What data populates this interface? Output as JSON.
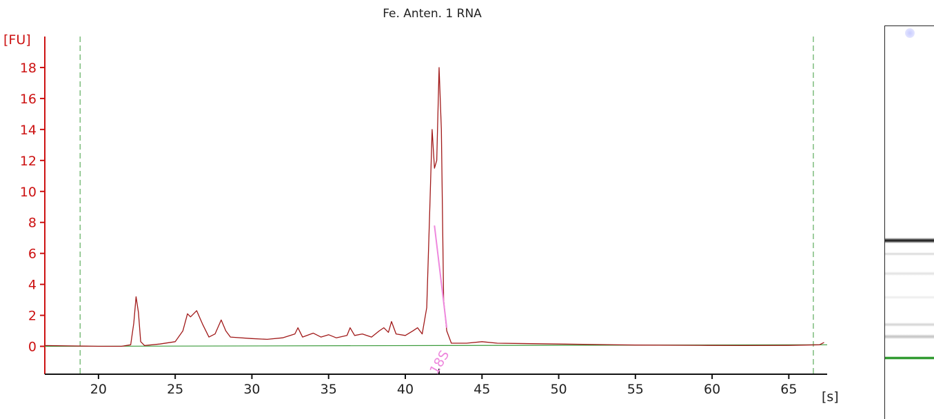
{
  "chart_data": {
    "type": "line",
    "title": "Fe. Anten. 1 RNA",
    "xlabel": "[s]",
    "ylabel": "[FU]",
    "xlim": [
      16.5,
      67.5
    ],
    "ylim": [
      -1.8,
      20
    ],
    "x_ticks": [
      20,
      25,
      30,
      35,
      40,
      45,
      50,
      55,
      60,
      65
    ],
    "y_ticks": [
      0,
      2,
      4,
      6,
      8,
      10,
      12,
      14,
      16,
      18
    ],
    "grid": false,
    "legend": "none",
    "series": [
      {
        "color": "#a01818",
        "points": [
          [
            16.5,
            0.05
          ],
          [
            18.0,
            0.03
          ],
          [
            20.0,
            0.0
          ],
          [
            21.5,
            0.0
          ],
          [
            22.1,
            0.1
          ],
          [
            22.3,
            1.5
          ],
          [
            22.45,
            3.2
          ],
          [
            22.6,
            2.2
          ],
          [
            22.75,
            0.3
          ],
          [
            23.0,
            0.05
          ],
          [
            24.0,
            0.15
          ],
          [
            25.0,
            0.3
          ],
          [
            25.5,
            1.0
          ],
          [
            25.8,
            2.1
          ],
          [
            26.0,
            1.9
          ],
          [
            26.4,
            2.3
          ],
          [
            26.8,
            1.4
          ],
          [
            27.2,
            0.6
          ],
          [
            27.6,
            0.8
          ],
          [
            28.0,
            1.7
          ],
          [
            28.3,
            1.0
          ],
          [
            28.6,
            0.6
          ],
          [
            30.0,
            0.5
          ],
          [
            31.0,
            0.45
          ],
          [
            32.0,
            0.55
          ],
          [
            32.8,
            0.8
          ],
          [
            33.0,
            1.2
          ],
          [
            33.3,
            0.6
          ],
          [
            34.0,
            0.85
          ],
          [
            34.5,
            0.6
          ],
          [
            35.0,
            0.75
          ],
          [
            35.5,
            0.55
          ],
          [
            36.2,
            0.7
          ],
          [
            36.4,
            1.2
          ],
          [
            36.7,
            0.7
          ],
          [
            37.2,
            0.8
          ],
          [
            37.8,
            0.6
          ],
          [
            38.3,
            1.0
          ],
          [
            38.6,
            1.2
          ],
          [
            38.9,
            0.9
          ],
          [
            39.1,
            1.6
          ],
          [
            39.4,
            0.8
          ],
          [
            40.0,
            0.7
          ],
          [
            40.5,
            1.0
          ],
          [
            40.8,
            1.2
          ],
          [
            41.1,
            0.8
          ],
          [
            41.4,
            2.5
          ],
          [
            41.6,
            9.0
          ],
          [
            41.75,
            14.0
          ],
          [
            41.9,
            11.5
          ],
          [
            42.05,
            12.0
          ],
          [
            42.2,
            18.0
          ],
          [
            42.35,
            14.0
          ],
          [
            42.5,
            3.0
          ],
          [
            42.7,
            1.0
          ],
          [
            43.0,
            0.2
          ],
          [
            44.0,
            0.2
          ],
          [
            45.0,
            0.3
          ],
          [
            46.0,
            0.2
          ],
          [
            50.0,
            0.15
          ],
          [
            55.0,
            0.08
          ],
          [
            59.7,
            0.06
          ],
          [
            62.0,
            0.05
          ],
          [
            65.0,
            0.06
          ],
          [
            67.0,
            0.1
          ],
          [
            67.3,
            0.25
          ]
        ]
      }
    ],
    "baseline": {
      "color": "#3a9a3a",
      "from": [
        16.5,
        0.0
      ],
      "to": [
        67.5,
        0.1
      ]
    },
    "markers": [
      {
        "x": 18.8,
        "color": "#3a9a3a"
      },
      {
        "x": 66.6,
        "color": "#3a9a3a"
      }
    ],
    "annotation": {
      "label": "18S",
      "x": 42.2,
      "color": "#ee88dd",
      "line_from": [
        41.9,
        7.8
      ],
      "line_to": [
        42.7,
        1.2
      ]
    }
  },
  "gel": {
    "bands": [
      {
        "pos": 0.545,
        "color": "#2a2a2a",
        "thick": 0.014
      },
      {
        "pos": 0.58,
        "color": "#dddddd",
        "thick": 0.01
      },
      {
        "pos": 0.63,
        "color": "#e5e5e5",
        "thick": 0.01
      },
      {
        "pos": 0.69,
        "color": "#eeeeee",
        "thick": 0.008
      },
      {
        "pos": 0.76,
        "color": "#d8d8d8",
        "thick": 0.01
      },
      {
        "pos": 0.79,
        "color": "#c8c8c8",
        "thick": 0.012
      },
      {
        "pos": 0.845,
        "color": "#0e8a0e",
        "thick": 0.01
      }
    ]
  }
}
